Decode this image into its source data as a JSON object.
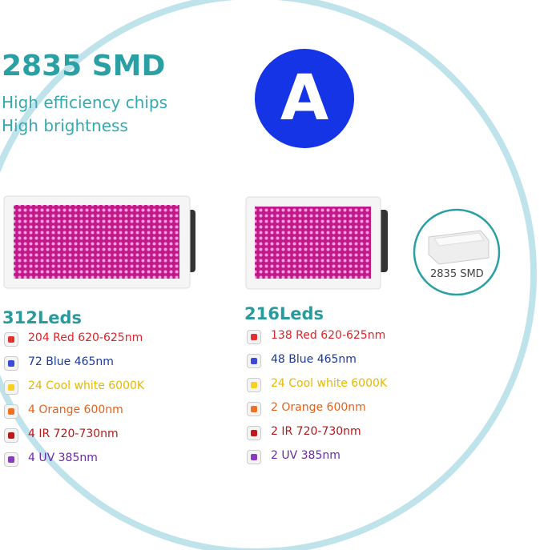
{
  "header": {
    "title": "2835 SMD",
    "lines": [
      "High efficiency chips",
      "High brightness"
    ],
    "badge": "A"
  },
  "chip_label": "2835 SMD",
  "panels": [
    {
      "count": "312Leds",
      "leds": [
        "204 Red 620-625nm",
        "72 Blue 465nm",
        "24 Cool white 6000K",
        "4 Orange 600nm",
        "4 IR 720-730nm",
        "4 UV 385nm"
      ]
    },
    {
      "count": "216Leds",
      "leds": [
        "138 Red 620-625nm",
        "48 Blue 465nm",
        "24 Cool white 6000K",
        "2 Orange 600nm",
        "2 IR 720-730nm",
        "2 UV 385nm"
      ]
    }
  ]
}
